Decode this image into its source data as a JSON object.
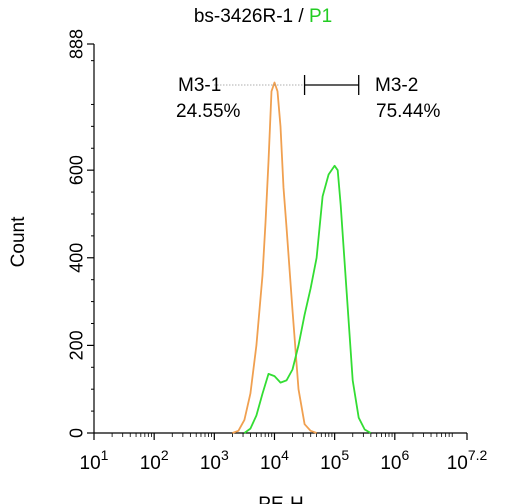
{
  "chart_data": {
    "type": "line",
    "title": {
      "sample": "bs-3426R-1",
      "separator": " / ",
      "gate": "P1"
    },
    "gate_color": "#22cc22",
    "xlabel": "PE-H",
    "ylabel": "Count",
    "x_scale": "log",
    "xlim": [
      1,
      7.2
    ],
    "ylim": [
      0,
      888
    ],
    "x_ticks": [
      {
        "base": "10",
        "exp": "1",
        "value": 1
      },
      {
        "base": "10",
        "exp": "2",
        "value": 2
      },
      {
        "base": "10",
        "exp": "3",
        "value": 3
      },
      {
        "base": "10",
        "exp": "4",
        "value": 4
      },
      {
        "base": "10",
        "exp": "5",
        "value": 5
      },
      {
        "base": "10",
        "exp": "6",
        "value": 6
      },
      {
        "base": "10",
        "exp": "7.2",
        "value": 7.2
      }
    ],
    "y_ticks": [
      {
        "label": "0",
        "value": 0
      },
      {
        "label": "200",
        "value": 200
      },
      {
        "label": "400",
        "value": 400
      },
      {
        "label": "600",
        "value": 600
      },
      {
        "label": "888",
        "value": 888
      }
    ],
    "series": [
      {
        "color": "#f0a050",
        "x": [
          3.3,
          3.4,
          3.5,
          3.6,
          3.7,
          3.8,
          3.85,
          3.9,
          3.95,
          4.0,
          4.05,
          4.1,
          4.15,
          4.2,
          4.3,
          4.4,
          4.5,
          4.6,
          4.7
        ],
        "y": [
          0,
          5,
          30,
          90,
          200,
          360,
          480,
          620,
          780,
          800,
          780,
          700,
          560,
          470,
          280,
          100,
          20,
          5,
          0
        ]
      },
      {
        "color": "#33dd33",
        "x": [
          3.5,
          3.6,
          3.7,
          3.8,
          3.9,
          4.0,
          4.1,
          4.2,
          4.3,
          4.4,
          4.5,
          4.6,
          4.7,
          4.8,
          4.9,
          5.0,
          5.05,
          5.1,
          5.2,
          5.3,
          5.4,
          5.5,
          5.6
        ],
        "y": [
          0,
          10,
          40,
          90,
          135,
          130,
          115,
          120,
          145,
          200,
          270,
          330,
          400,
          540,
          590,
          610,
          600,
          520,
          320,
          120,
          35,
          8,
          0
        ]
      }
    ],
    "markers": [
      {
        "name": "M3-1",
        "percent": "24.55%",
        "range": [
          3.0,
          4.5
        ]
      },
      {
        "name": "M3-2",
        "percent": "75.44%",
        "range": [
          4.5,
          5.4
        ]
      }
    ],
    "grid": false,
    "legend": "none"
  }
}
